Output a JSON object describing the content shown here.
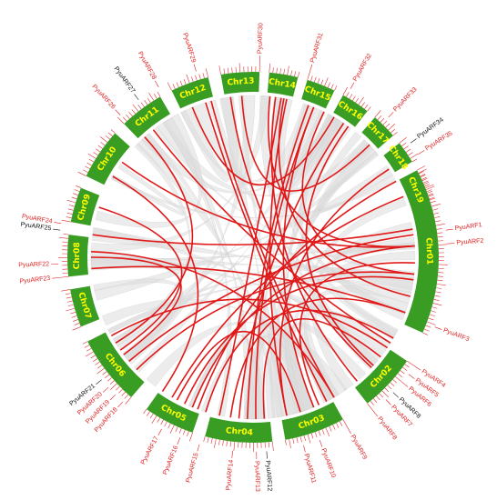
{
  "colors": {
    "chromosome": "#3a9d23",
    "chromosome_label": "#ffff00",
    "tick": "#e03030",
    "segmental_link": "#e01818",
    "background_link": "#dcdcdc",
    "gene_red": "#e02020",
    "gene_black": "#111111"
  },
  "chromosomes": [
    {
      "name": "Chr01",
      "start": 62,
      "end": 114
    },
    {
      "name": "Chr02",
      "start": 124,
      "end": 142
    },
    {
      "name": "Chr03",
      "start": 151,
      "end": 170
    },
    {
      "name": "Chr04",
      "start": 174,
      "end": 195
    },
    {
      "name": "Chr05",
      "start": 199,
      "end": 215
    },
    {
      "name": "Chr06",
      "start": 221,
      "end": 243
    },
    {
      "name": "Chr07",
      "start": 248,
      "end": 260
    },
    {
      "name": "Chr08",
      "start": 264,
      "end": 277
    },
    {
      "name": "Chr09",
      "start": 281,
      "end": 292
    },
    {
      "name": "Chr10",
      "start": 296,
      "end": 312
    },
    {
      "name": "Chr11",
      "start": 316,
      "end": 330
    },
    {
      "name": "Chr12",
      "start": 334,
      "end": 346
    },
    {
      "name": "Chr13",
      "start": 350,
      "end": 2
    },
    {
      "name": "Chr14",
      "start": 5,
      "end": 14
    },
    {
      "name": "Chr15",
      "start": 17,
      "end": 26
    },
    {
      "name": "Chr16",
      "start": 29,
      "end": 38
    },
    {
      "name": "Chr17",
      "start": 41,
      "end": 49
    },
    {
      "name": "Chr18",
      "start": 52,
      "end": 59
    },
    {
      "name": "Chr19",
      "start": 63,
      "end": 72
    }
  ],
  "genes": [
    {
      "label": "PyuARF1",
      "angle": 82,
      "color": "red"
    },
    {
      "label": "PyuARF2",
      "angle": 86,
      "color": "red"
    },
    {
      "label": "PyuARF3",
      "angle": 111,
      "color": "red"
    },
    {
      "label": "PyuARF4",
      "angle": 124,
      "color": "red"
    },
    {
      "label": "PyuARF5",
      "angle": 127,
      "color": "red"
    },
    {
      "label": "PyuARF6",
      "angle": 130,
      "color": "red"
    },
    {
      "label": "PyuARF8",
      "angle": 134,
      "color": "black"
    },
    {
      "label": "PyuARF7",
      "angle": 137,
      "color": "red"
    },
    {
      "label": "PyuARF8",
      "angle": 142,
      "color": "red"
    },
    {
      "label": "PyuARF9",
      "angle": 151,
      "color": "red"
    },
    {
      "label": "PyuARF10",
      "angle": 160,
      "color": "red"
    },
    {
      "label": "PyuARF11",
      "angle": 165,
      "color": "red"
    },
    {
      "label": "PyuARF12",
      "angle": 176,
      "color": "black"
    },
    {
      "label": "PyuARF13",
      "angle": 179,
      "color": "red"
    },
    {
      "label": "PyuARF14",
      "angle": 186,
      "color": "red"
    },
    {
      "label": "PyuARF15",
      "angle": 196,
      "color": "red"
    },
    {
      "label": "PyuARF16",
      "angle": 202,
      "color": "red"
    },
    {
      "label": "PyuARF17",
      "angle": 208,
      "color": "red"
    },
    {
      "label": "PyuARF18",
      "angle": 222,
      "color": "red"
    },
    {
      "label": "PyuARF19",
      "angle": 225,
      "color": "red"
    },
    {
      "label": "PyuARF20",
      "angle": 228,
      "color": "red"
    },
    {
      "label": "PyuARF21",
      "angle": 231,
      "color": "black"
    },
    {
      "label": "PyuARF22",
      "angle": 268,
      "color": "red"
    },
    {
      "label": "PyuARF23",
      "angle": 264,
      "color": "red"
    },
    {
      "label": "PyuARF24",
      "angle": 280,
      "color": "red"
    },
    {
      "label": "PyuARF25",
      "angle": 278,
      "color": "black"
    },
    {
      "label": "PyuARF26",
      "angle": 317,
      "color": "red"
    },
    {
      "label": "PyuARF27",
      "angle": 324,
      "color": "black"
    },
    {
      "label": "PyuARF28",
      "angle": 331,
      "color": "red"
    },
    {
      "label": "PyuARF29",
      "angle": 343,
      "color": "red"
    },
    {
      "label": "PyuARF30",
      "angle": 2,
      "color": "red"
    },
    {
      "label": "PyuARF31",
      "angle": 17,
      "color": "red"
    },
    {
      "label": "PyuARF32",
      "angle": 30,
      "color": "red"
    },
    {
      "label": "PyuARF33",
      "angle": 44,
      "color": "red"
    },
    {
      "label": "PyuARF34",
      "angle": 54,
      "color": "black"
    },
    {
      "label": "PyuARF35",
      "angle": 58,
      "color": "red"
    }
  ],
  "links": [
    {
      "a": 82,
      "b": 230
    },
    {
      "a": 86,
      "b": 6
    },
    {
      "a": 92,
      "b": 156
    },
    {
      "a": 98,
      "b": 205
    },
    {
      "a": 104,
      "b": 11
    },
    {
      "a": 110,
      "b": 188
    },
    {
      "a": 124,
      "b": 241
    },
    {
      "a": 128,
      "b": 176
    },
    {
      "a": 133,
      "b": 352
    },
    {
      "a": 140,
      "b": 8
    },
    {
      "a": 153,
      "b": 343
    },
    {
      "a": 158,
      "b": 22
    },
    {
      "a": 163,
      "b": 208
    },
    {
      "a": 168,
      "b": 12
    },
    {
      "a": 179,
      "b": 22
    },
    {
      "a": 185,
      "b": 34
    },
    {
      "a": 192,
      "b": 10
    },
    {
      "a": 197,
      "b": 120
    },
    {
      "a": 202,
      "b": 86
    },
    {
      "a": 210,
      "b": 68
    },
    {
      "a": 226,
      "b": 96
    },
    {
      "a": 233,
      "b": 270
    },
    {
      "a": 238,
      "b": 318
    },
    {
      "a": 266,
      "b": 110
    },
    {
      "a": 272,
      "b": 150
    },
    {
      "a": 278,
      "b": 80
    },
    {
      "a": 288,
      "b": 235
    },
    {
      "a": 300,
      "b": 214
    },
    {
      "a": 306,
      "b": 86
    },
    {
      "a": 322,
      "b": 122
    },
    {
      "a": 338,
      "b": 30
    },
    {
      "a": 345,
      "b": 150
    },
    {
      "a": 356,
      "b": 46
    },
    {
      "a": 20,
      "b": 182
    },
    {
      "a": 26,
      "b": 96
    },
    {
      "a": 36,
      "b": 132
    },
    {
      "a": 57,
      "b": 168
    },
    {
      "a": 62,
      "b": 200
    }
  ]
}
